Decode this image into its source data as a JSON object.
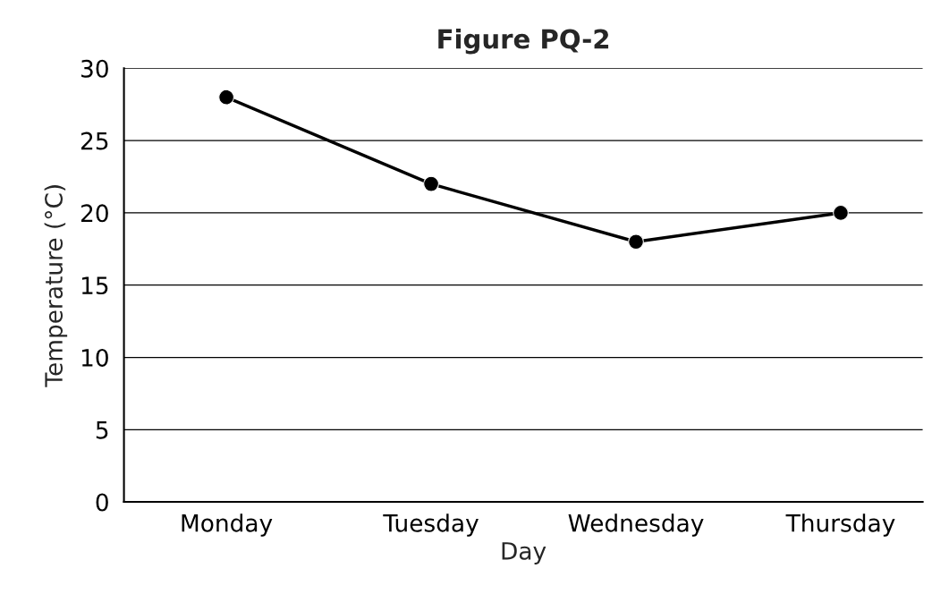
{
  "chart_data": {
    "type": "line",
    "title": "Figure PQ-2",
    "xlabel": "Day",
    "ylabel": "Temperature (°C)",
    "categories": [
      "Monday",
      "Tuesday",
      "Wednesday",
      "Thursday"
    ],
    "series": [
      {
        "color": "#000000",
        "values": [
          28,
          22,
          18,
          20
        ]
      }
    ],
    "ylim": [
      0,
      30
    ],
    "yticks": [
      0,
      5,
      10,
      15,
      20,
      25,
      30
    ],
    "grid": "y",
    "marker": "circle",
    "line_style": "solid"
  }
}
